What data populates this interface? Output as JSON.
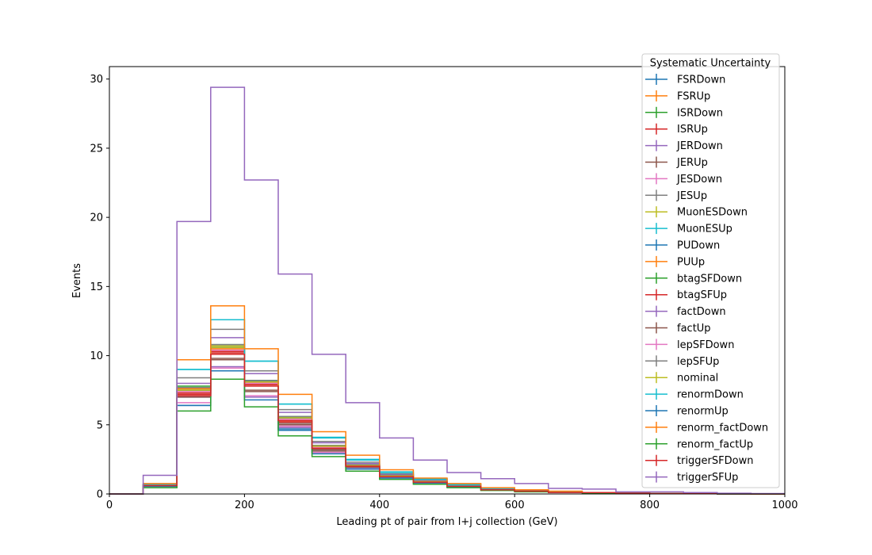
{
  "chart_data": {
    "type": "step",
    "title": "",
    "xlabel": "Leading pt of pair from l+j collection (GeV)",
    "ylabel": "Events",
    "xlim": [
      0,
      1000
    ],
    "ylim": [
      0,
      30.9
    ],
    "xticks": [
      "0",
      "200",
      "400",
      "600",
      "800",
      "1000"
    ],
    "yticks": [
      "0",
      "5",
      "10",
      "15",
      "20",
      "25",
      "30"
    ],
    "grid": false,
    "legend_title": "Systematic Uncertainty",
    "legend_position": "top-right",
    "bin_edges": [
      0,
      50,
      100,
      150,
      200,
      250,
      300,
      350,
      400,
      450,
      500,
      550,
      600,
      650,
      700,
      750,
      800,
      850,
      900,
      950,
      1000
    ],
    "series": [
      {
        "name": "FSRDown",
        "color": "#1f77b4",
        "values": [
          0,
          0.55,
          6.4,
          8.9,
          8.1,
          4.7,
          3.2,
          1.9,
          1.2,
          0.8,
          0.5,
          0.3,
          0.2,
          0.1,
          0.1,
          0.05,
          0.03,
          0.02,
          0.01,
          0
        ]
      },
      {
        "name": "FSRUp",
        "color": "#ff7f0e",
        "values": [
          0,
          0.65,
          7.4,
          10.5,
          7.9,
          5.3,
          3.5,
          2.1,
          1.3,
          0.9,
          0.6,
          0.35,
          0.2,
          0.1,
          0.1,
          0.05,
          0.03,
          0.02,
          0.01,
          0
        ]
      },
      {
        "name": "ISRDown",
        "color": "#2ca02c",
        "values": [
          0,
          0.6,
          7.5,
          10.6,
          8.2,
          5.5,
          3.4,
          2.0,
          1.3,
          0.9,
          0.55,
          0.3,
          0.2,
          0.1,
          0.1,
          0.05,
          0.03,
          0.02,
          0.01,
          0
        ]
      },
      {
        "name": "ISRUp",
        "color": "#d62728",
        "values": [
          0,
          0.6,
          7.2,
          10.2,
          8.0,
          5.2,
          3.3,
          2.0,
          1.25,
          0.85,
          0.55,
          0.3,
          0.2,
          0.1,
          0.1,
          0.05,
          0.03,
          0.02,
          0.01,
          0
        ]
      },
      {
        "name": "JERDown",
        "color": "#9467bd",
        "values": [
          0,
          0.6,
          7.0,
          9.2,
          7.0,
          4.8,
          3.0,
          1.9,
          1.2,
          0.8,
          0.5,
          0.3,
          0.2,
          0.1,
          0.1,
          0.05,
          0.03,
          0.02,
          0.01,
          0
        ]
      },
      {
        "name": "JERUp",
        "color": "#8c564b",
        "values": [
          0,
          0.6,
          7.1,
          9.7,
          7.4,
          5.0,
          3.1,
          1.95,
          1.25,
          0.85,
          0.55,
          0.3,
          0.2,
          0.1,
          0.1,
          0.05,
          0.03,
          0.02,
          0.01,
          0
        ]
      },
      {
        "name": "JESDown",
        "color": "#e377c2",
        "values": [
          0,
          0.6,
          6.6,
          9.1,
          7.1,
          4.9,
          3.0,
          1.8,
          1.15,
          0.8,
          0.5,
          0.3,
          0.2,
          0.1,
          0.1,
          0.05,
          0.03,
          0.02,
          0.01,
          0
        ]
      },
      {
        "name": "JESUp",
        "color": "#7f7f7f",
        "values": [
          0,
          0.65,
          8.4,
          11.9,
          8.9,
          6.1,
          3.8,
          2.3,
          1.45,
          1.0,
          0.65,
          0.4,
          0.25,
          0.15,
          0.1,
          0.05,
          0.03,
          0.02,
          0.01,
          0
        ]
      },
      {
        "name": "MuonESDown",
        "color": "#bcbd22",
        "values": [
          0,
          0.6,
          7.6,
          10.7,
          8.1,
          5.5,
          3.5,
          2.1,
          1.3,
          0.9,
          0.55,
          0.3,
          0.2,
          0.1,
          0.1,
          0.05,
          0.03,
          0.02,
          0.01,
          0
        ]
      },
      {
        "name": "MuonESUp",
        "color": "#17becf",
        "values": [
          0,
          0.7,
          9.0,
          12.6,
          9.6,
          6.5,
          4.1,
          2.5,
          1.6,
          1.1,
          0.7,
          0.4,
          0.25,
          0.15,
          0.1,
          0.05,
          0.03,
          0.02,
          0.01,
          0
        ]
      },
      {
        "name": "PUDown",
        "color": "#1f77b4",
        "values": [
          0,
          0.6,
          7.5,
          10.6,
          8.2,
          5.5,
          3.4,
          2.1,
          1.4,
          0.9,
          0.55,
          0.3,
          0.2,
          0.1,
          0.1,
          0.05,
          0.03,
          0.02,
          0.01,
          0
        ]
      },
      {
        "name": "PUUp",
        "color": "#ff7f0e",
        "values": [
          0,
          0.6,
          7.6,
          10.4,
          8.0,
          5.4,
          3.4,
          2.0,
          1.3,
          0.9,
          0.55,
          0.3,
          0.2,
          0.1,
          0.1,
          0.05,
          0.03,
          0.02,
          0.01,
          0
        ]
      },
      {
        "name": "btagSFDown",
        "color": "#2ca02c",
        "values": [
          0,
          0.6,
          7.8,
          10.8,
          8.2,
          5.6,
          3.5,
          2.1,
          1.35,
          0.9,
          0.55,
          0.3,
          0.2,
          0.1,
          0.1,
          0.05,
          0.03,
          0.02,
          0.01,
          0
        ]
      },
      {
        "name": "btagSFUp",
        "color": "#d62728",
        "values": [
          0,
          0.6,
          7.3,
          10.3,
          7.9,
          5.4,
          3.4,
          2.0,
          1.3,
          0.85,
          0.55,
          0.3,
          0.2,
          0.1,
          0.1,
          0.05,
          0.03,
          0.02,
          0.01,
          0
        ]
      },
      {
        "name": "factDown",
        "color": "#9467bd",
        "values": [
          0,
          0.65,
          8.0,
          11.3,
          8.7,
          5.9,
          3.7,
          2.2,
          1.4,
          0.95,
          0.6,
          0.35,
          0.2,
          0.1,
          0.1,
          0.05,
          0.03,
          0.02,
          0.01,
          0
        ]
      },
      {
        "name": "factUp",
        "color": "#8c564b",
        "values": [
          0,
          0.55,
          7.0,
          9.8,
          7.5,
          5.1,
          3.2,
          1.95,
          1.25,
          0.85,
          0.5,
          0.3,
          0.2,
          0.1,
          0.1,
          0.05,
          0.03,
          0.02,
          0.01,
          0
        ]
      },
      {
        "name": "lepSFDown",
        "color": "#e377c2",
        "values": [
          0,
          0.6,
          7.4,
          10.4,
          8.0,
          5.4,
          3.4,
          2.05,
          1.3,
          0.9,
          0.55,
          0.3,
          0.2,
          0.1,
          0.1,
          0.05,
          0.03,
          0.02,
          0.01,
          0
        ]
      },
      {
        "name": "lepSFUp",
        "color": "#7f7f7f",
        "values": [
          0,
          0.6,
          7.7,
          10.8,
          8.2,
          5.6,
          3.5,
          2.1,
          1.35,
          0.9,
          0.55,
          0.3,
          0.2,
          0.1,
          0.1,
          0.05,
          0.03,
          0.02,
          0.01,
          0
        ]
      },
      {
        "name": "nominal",
        "color": "#bcbd22",
        "values": [
          0,
          0.6,
          7.5,
          10.6,
          8.1,
          5.5,
          3.45,
          2.05,
          1.3,
          0.9,
          0.55,
          0.3,
          0.2,
          0.1,
          0.1,
          0.05,
          0.03,
          0.02,
          0.01,
          0
        ]
      },
      {
        "name": "renormDown",
        "color": "#17becf",
        "values": [
          0,
          0.7,
          9.0,
          12.6,
          9.6,
          6.5,
          4.05,
          2.45,
          1.55,
          1.05,
          0.65,
          0.4,
          0.25,
          0.15,
          0.1,
          0.05,
          0.03,
          0.02,
          0.01,
          0
        ]
      },
      {
        "name": "renormUp",
        "color": "#1f77b4",
        "values": [
          0,
          0.55,
          6.4,
          8.9,
          6.8,
          4.6,
          2.9,
          1.8,
          1.15,
          0.8,
          0.5,
          0.3,
          0.2,
          0.1,
          0.1,
          0.05,
          0.03,
          0.02,
          0.01,
          0
        ]
      },
      {
        "name": "renorm_factDown",
        "color": "#ff7f0e",
        "values": [
          0,
          0.75,
          9.7,
          13.6,
          10.5,
          7.2,
          4.5,
          2.8,
          1.75,
          1.15,
          0.75,
          0.45,
          0.3,
          0.2,
          0.1,
          0.05,
          0.03,
          0.02,
          0.01,
          0
        ]
      },
      {
        "name": "renorm_factUp",
        "color": "#2ca02c",
        "values": [
          0,
          0.45,
          6.0,
          8.3,
          6.3,
          4.2,
          2.7,
          1.65,
          1.05,
          0.7,
          0.45,
          0.25,
          0.15,
          0.1,
          0.05,
          0.05,
          0.03,
          0.02,
          0.01,
          0
        ]
      },
      {
        "name": "triggerSFDown",
        "color": "#d62728",
        "values": [
          0,
          0.6,
          7.1,
          10.1,
          7.8,
          5.3,
          3.3,
          2.0,
          1.25,
          0.85,
          0.55,
          0.3,
          0.2,
          0.1,
          0.1,
          0.05,
          0.03,
          0.02,
          0.01,
          0
        ]
      },
      {
        "name": "triggerSFUp",
        "color": "#9467bd",
        "values": [
          0,
          1.35,
          19.7,
          29.4,
          22.7,
          15.9,
          10.1,
          6.6,
          4.05,
          2.45,
          1.55,
          1.1,
          0.75,
          0.4,
          0.35,
          0.15,
          0.15,
          0.1,
          0.05,
          0.03
        ]
      }
    ]
  }
}
